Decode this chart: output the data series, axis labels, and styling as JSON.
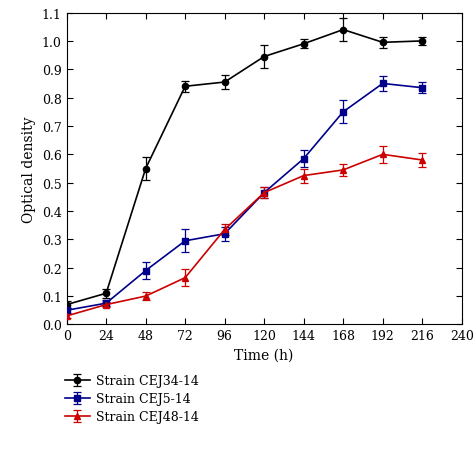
{
  "time": [
    0,
    24,
    48,
    72,
    96,
    120,
    144,
    168,
    192,
    216
  ],
  "CEJ34_14": [
    0.07,
    0.11,
    0.55,
    0.84,
    0.855,
    0.945,
    0.99,
    1.04,
    0.995,
    1.0
  ],
  "CEJ34_14_err": [
    0.012,
    0.015,
    0.04,
    0.02,
    0.025,
    0.04,
    0.015,
    0.04,
    0.02,
    0.015
  ],
  "CEJ5_14": [
    0.05,
    0.075,
    0.19,
    0.295,
    0.32,
    0.465,
    0.585,
    0.75,
    0.85,
    0.835
  ],
  "CEJ5_14_err": [
    0.008,
    0.01,
    0.03,
    0.04,
    0.025,
    0.02,
    0.03,
    0.04,
    0.025,
    0.02
  ],
  "CEJ48_14": [
    0.03,
    0.07,
    0.1,
    0.165,
    0.335,
    0.465,
    0.525,
    0.545,
    0.6,
    0.58
  ],
  "CEJ48_14_err": [
    0.008,
    0.01,
    0.015,
    0.03,
    0.02,
    0.02,
    0.025,
    0.02,
    0.03,
    0.025
  ],
  "xlabel": "Time (h)",
  "ylabel": "Optical density",
  "xlim": [
    0,
    240
  ],
  "ylim": [
    0,
    1.1
  ],
  "yticks": [
    0.0,
    0.1,
    0.2,
    0.3,
    0.4,
    0.5,
    0.6,
    0.7,
    0.8,
    0.9,
    1.0,
    1.1
  ],
  "xticks": [
    0,
    24,
    48,
    72,
    96,
    120,
    144,
    168,
    192,
    216,
    240
  ],
  "color_black": "#000000",
  "color_blue": "#00008B",
  "color_red": "#CC0000",
  "legend_labels": [
    "Strain CEJ34-14",
    "Strain CEJ5-14",
    "Strain CEJ48-14"
  ]
}
